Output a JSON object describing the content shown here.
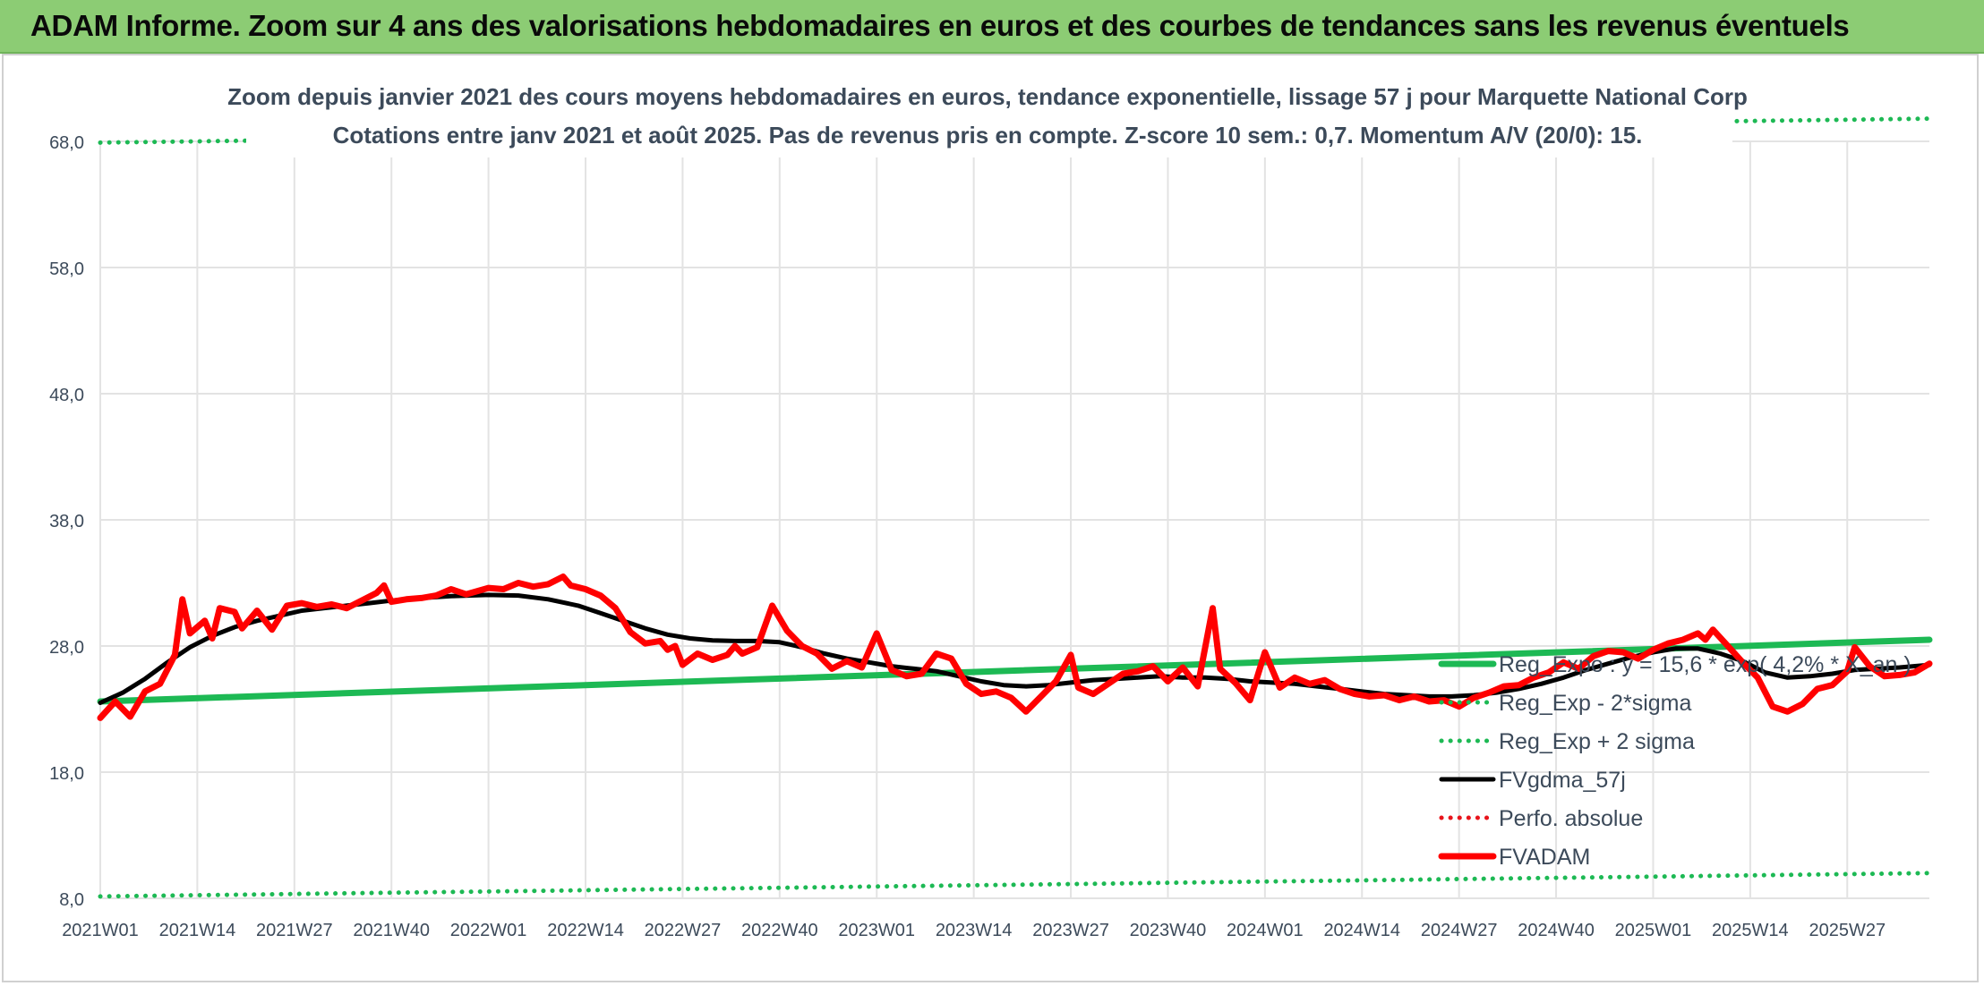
{
  "banner": {
    "title": "ADAM Informe. Zoom sur 4 ans des valorisations hebdomadaires en euros et des courbes de tendances sans les revenus éventuels"
  },
  "chart_data": {
    "type": "line",
    "title": "Zoom depuis janvier 2021 des cours moyens hebdomadaires en euros, tendance exponentielle, lissage 57 j pour Marquette National Corp",
    "subtitle": "Cotations entre janv 2021 et août 2025. Pas de revenus pris en compte. Z-score 10 sem.: 0,7. Momentum A/V (20/0): 15.",
    "xlabel": "",
    "ylabel": "",
    "ylim": [
      8.0,
      68.0
    ],
    "y_ticks": [
      "8,0",
      "18,0",
      "28,0",
      "38,0",
      "48,0",
      "58,0",
      "68,0"
    ],
    "y_tick_values": [
      8,
      18,
      28,
      38,
      48,
      58,
      68
    ],
    "x_ticks": [
      "2021W01",
      "2021W14",
      "2021W27",
      "2021W40",
      "2022W01",
      "2022W14",
      "2022W27",
      "2022W40",
      "2023W01",
      "2023W14",
      "2023W27",
      "2023W40",
      "2024W01",
      "2024W14",
      "2024W27",
      "2024W40",
      "2025W01",
      "2025W14",
      "2025W27"
    ],
    "grid": true,
    "legend_position": "right",
    "colors": {
      "reg_expo": "#1db954",
      "sigma_lines": "#1db954",
      "fvgdma": "#000000",
      "perfo": "#e8141b",
      "fvadam": "#ff0000",
      "grid": "#e3e3e3"
    },
    "series": [
      {
        "name": "FVADAM",
        "style": "solid-thick",
        "color": "#ff0000",
        "points": [
          [
            "2021W01",
            22.3
          ],
          [
            "2021W03",
            23.6
          ],
          [
            "2021W05",
            22.4
          ],
          [
            "2021W07",
            24.4
          ],
          [
            "2021W09",
            25.0
          ],
          [
            "2021W11",
            27.3
          ],
          [
            "2021W12",
            31.7
          ],
          [
            "2021W13",
            29.0
          ],
          [
            "2021W15",
            30.0
          ],
          [
            "2021W16",
            28.6
          ],
          [
            "2021W17",
            31.0
          ],
          [
            "2021W19",
            30.7
          ],
          [
            "2021W20",
            29.4
          ],
          [
            "2021W22",
            30.8
          ],
          [
            "2021W24",
            29.3
          ],
          [
            "2021W26",
            31.2
          ],
          [
            "2021W28",
            31.4
          ],
          [
            "2021W30",
            31.1
          ],
          [
            "2021W32",
            31.3
          ],
          [
            "2021W34",
            31.0
          ],
          [
            "2021W36",
            31.6
          ],
          [
            "2021W38",
            32.2
          ],
          [
            "2021W39",
            32.8
          ],
          [
            "2021W40",
            31.5
          ],
          [
            "2021W42",
            31.7
          ],
          [
            "2021W44",
            31.8
          ],
          [
            "2021W46",
            32.0
          ],
          [
            "2021W48",
            32.5
          ],
          [
            "2021W50",
            32.1
          ],
          [
            "2022W01",
            32.6
          ],
          [
            "2022W03",
            32.5
          ],
          [
            "2022W05",
            33.0
          ],
          [
            "2022W07",
            32.7
          ],
          [
            "2022W09",
            32.9
          ],
          [
            "2022W11",
            33.5
          ],
          [
            "2022W12",
            32.8
          ],
          [
            "2022W14",
            32.5
          ],
          [
            "2022W16",
            32.0
          ],
          [
            "2022W18",
            31.0
          ],
          [
            "2022W20",
            29.1
          ],
          [
            "2022W22",
            28.2
          ],
          [
            "2022W24",
            28.4
          ],
          [
            "2022W25",
            27.7
          ],
          [
            "2022W26",
            28.0
          ],
          [
            "2022W27",
            26.5
          ],
          [
            "2022W29",
            27.4
          ],
          [
            "2022W31",
            26.9
          ],
          [
            "2022W33",
            27.3
          ],
          [
            "2022W34",
            28.0
          ],
          [
            "2022W35",
            27.4
          ],
          [
            "2022W37",
            27.9
          ],
          [
            "2022W39",
            31.2
          ],
          [
            "2022W41",
            29.2
          ],
          [
            "2022W43",
            28.0
          ],
          [
            "2022W45",
            27.4
          ],
          [
            "2022W47",
            26.2
          ],
          [
            "2022W49",
            26.8
          ],
          [
            "2022W51",
            26.3
          ],
          [
            "2023W01",
            29.0
          ],
          [
            "2023W03",
            26.1
          ],
          [
            "2023W05",
            25.6
          ],
          [
            "2023W07",
            25.8
          ],
          [
            "2023W09",
            27.4
          ],
          [
            "2023W11",
            27.0
          ],
          [
            "2023W13",
            25.0
          ],
          [
            "2023W15",
            24.2
          ],
          [
            "2023W17",
            24.4
          ],
          [
            "2023W19",
            23.9
          ],
          [
            "2023W21",
            22.8
          ],
          [
            "2023W23",
            24.0
          ],
          [
            "2023W25",
            25.2
          ],
          [
            "2023W27",
            27.3
          ],
          [
            "2023W28",
            24.7
          ],
          [
            "2023W30",
            24.2
          ],
          [
            "2023W32",
            25.0
          ],
          [
            "2023W34",
            25.8
          ],
          [
            "2023W36",
            26.0
          ],
          [
            "2023W38",
            26.4
          ],
          [
            "2023W40",
            25.2
          ],
          [
            "2023W42",
            26.3
          ],
          [
            "2023W44",
            24.8
          ],
          [
            "2023W46",
            31.0
          ],
          [
            "2023W47",
            26.2
          ],
          [
            "2023W49",
            25.1
          ],
          [
            "2023W51",
            23.7
          ],
          [
            "2024W01",
            27.5
          ],
          [
            "2024W03",
            24.7
          ],
          [
            "2024W05",
            25.5
          ],
          [
            "2024W07",
            25.0
          ],
          [
            "2024W09",
            25.3
          ],
          [
            "2024W11",
            24.6
          ],
          [
            "2024W13",
            24.2
          ],
          [
            "2024W15",
            24.0
          ],
          [
            "2024W17",
            24.1
          ],
          [
            "2024W19",
            23.7
          ],
          [
            "2024W21",
            24.0
          ],
          [
            "2024W23",
            23.6
          ],
          [
            "2024W25",
            23.7
          ],
          [
            "2024W27",
            23.2
          ],
          [
            "2024W29",
            23.9
          ],
          [
            "2024W31",
            24.3
          ],
          [
            "2024W33",
            24.8
          ],
          [
            "2024W35",
            24.9
          ],
          [
            "2024W37",
            25.5
          ],
          [
            "2024W39",
            25.9
          ],
          [
            "2024W41",
            26.7
          ],
          [
            "2024W43",
            26.2
          ],
          [
            "2024W45",
            27.2
          ],
          [
            "2024W47",
            27.6
          ],
          [
            "2024W49",
            27.5
          ],
          [
            "2024W51",
            27.0
          ],
          [
            "2025W01",
            27.7
          ],
          [
            "2025W03",
            28.2
          ],
          [
            "2025W05",
            28.5
          ],
          [
            "2025W07",
            29.0
          ],
          [
            "2025W08",
            28.5
          ],
          [
            "2025W09",
            29.3
          ],
          [
            "2025W11",
            28.0
          ],
          [
            "2025W13",
            26.7
          ],
          [
            "2025W15",
            25.5
          ],
          [
            "2025W17",
            23.2
          ],
          [
            "2025W19",
            22.8
          ],
          [
            "2025W21",
            23.4
          ],
          [
            "2025W23",
            24.6
          ],
          [
            "2025W25",
            24.9
          ],
          [
            "2025W27",
            26.0
          ],
          [
            "2025W28",
            27.9
          ],
          [
            "2025W30",
            26.4
          ],
          [
            "2025W32",
            25.6
          ],
          [
            "2025W34",
            25.7
          ],
          [
            "2025W36",
            25.9
          ],
          [
            "2025W38",
            26.6
          ]
        ]
      },
      {
        "name": "FVgdma_57j",
        "style": "solid",
        "color": "#000000",
        "points": [
          [
            "2021W01",
            23.5
          ],
          [
            "2021W04",
            24.3
          ],
          [
            "2021W07",
            25.4
          ],
          [
            "2021W10",
            26.7
          ],
          [
            "2021W13",
            27.9
          ],
          [
            "2021W16",
            28.8
          ],
          [
            "2021W19",
            29.5
          ],
          [
            "2021W22",
            30.0
          ],
          [
            "2021W25",
            30.4
          ],
          [
            "2021W28",
            30.8
          ],
          [
            "2021W31",
            31.0
          ],
          [
            "2021W34",
            31.2
          ],
          [
            "2021W37",
            31.4
          ],
          [
            "2021W40",
            31.6
          ],
          [
            "2021W44",
            31.8
          ],
          [
            "2021W48",
            31.95
          ],
          [
            "2022W01",
            32.05
          ],
          [
            "2022W05",
            32.0
          ],
          [
            "2022W09",
            31.7
          ],
          [
            "2022W13",
            31.2
          ],
          [
            "2022W16",
            30.6
          ],
          [
            "2022W19",
            30.0
          ],
          [
            "2022W22",
            29.4
          ],
          [
            "2022W25",
            28.9
          ],
          [
            "2022W28",
            28.6
          ],
          [
            "2022W31",
            28.45
          ],
          [
            "2022W34",
            28.4
          ],
          [
            "2022W37",
            28.4
          ],
          [
            "2022W40",
            28.3
          ],
          [
            "2022W43",
            27.9
          ],
          [
            "2022W46",
            27.4
          ],
          [
            "2022W49",
            27.0
          ],
          [
            "2022W52",
            26.7
          ],
          [
            "2023W03",
            26.4
          ],
          [
            "2023W06",
            26.2
          ],
          [
            "2023W09",
            26.0
          ],
          [
            "2023W12",
            25.6
          ],
          [
            "2023W15",
            25.2
          ],
          [
            "2023W18",
            24.9
          ],
          [
            "2023W21",
            24.8
          ],
          [
            "2023W24",
            24.9
          ],
          [
            "2023W27",
            25.1
          ],
          [
            "2023W30",
            25.3
          ],
          [
            "2023W33",
            25.4
          ],
          [
            "2023W36",
            25.5
          ],
          [
            "2023W39",
            25.6
          ],
          [
            "2023W42",
            25.5
          ],
          [
            "2023W45",
            25.5
          ],
          [
            "2023W48",
            25.4
          ],
          [
            "2023W51",
            25.2
          ],
          [
            "2024W02",
            25.1
          ],
          [
            "2024W05",
            25.0
          ],
          [
            "2024W08",
            24.8
          ],
          [
            "2024W11",
            24.6
          ],
          [
            "2024W14",
            24.4
          ],
          [
            "2024W17",
            24.2
          ],
          [
            "2024W20",
            24.1
          ],
          [
            "2024W23",
            24.0
          ],
          [
            "2024W26",
            24.0
          ],
          [
            "2024W29",
            24.1
          ],
          [
            "2024W32",
            24.3
          ],
          [
            "2024W35",
            24.6
          ],
          [
            "2024W38",
            25.0
          ],
          [
            "2024W41",
            25.5
          ],
          [
            "2024W44",
            26.1
          ],
          [
            "2024W47",
            26.6
          ],
          [
            "2024W50",
            27.1
          ],
          [
            "2025W01",
            27.5
          ],
          [
            "2025W04",
            27.8
          ],
          [
            "2025W07",
            27.8
          ],
          [
            "2025W10",
            27.4
          ],
          [
            "2025W13",
            26.8
          ],
          [
            "2025W16",
            25.9
          ],
          [
            "2025W19",
            25.5
          ],
          [
            "2025W22",
            25.6
          ],
          [
            "2025W25",
            25.8
          ],
          [
            "2025W28",
            26.1
          ],
          [
            "2025W31",
            26.2
          ],
          [
            "2025W34",
            26.3
          ],
          [
            "2025W38",
            26.5
          ]
        ]
      },
      {
        "name": "Reg_Expo : y = 15,6 * exp( 4,2% * X_an )",
        "style": "solid-thick",
        "color": "#1db954",
        "points": [
          [
            "2021W01",
            23.6
          ],
          [
            "2025W38",
            28.5
          ]
        ]
      },
      {
        "name": "Reg_Exp - 2*sigma",
        "style": "dotted",
        "color": "#1db954",
        "points": [
          [
            "2021W01",
            8.15
          ],
          [
            "2025W38",
            10.0
          ]
        ]
      },
      {
        "name": "Reg_Exp + 2 sigma",
        "style": "dotted",
        "color": "#1db954",
        "points": [
          [
            "2021W01",
            67.9
          ],
          [
            "2025W38",
            69.8
          ]
        ]
      },
      {
        "name": "Perfo. absolue",
        "style": "dotted",
        "color": "#e8141b",
        "points": []
      }
    ]
  }
}
